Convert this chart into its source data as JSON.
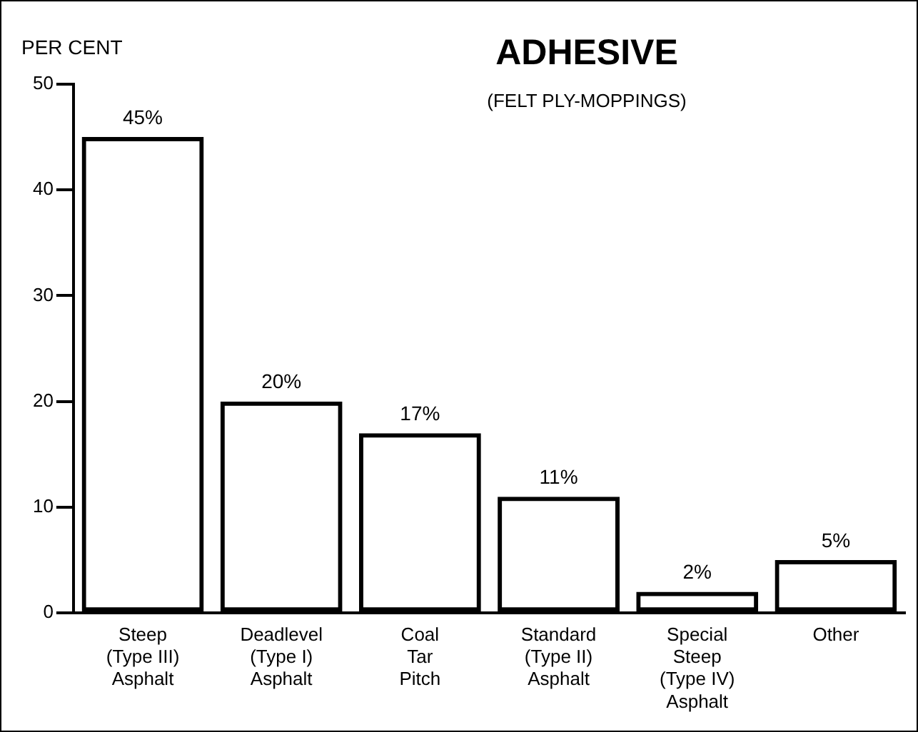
{
  "chart_data": {
    "type": "bar",
    "title": "ADHESIVE",
    "subtitle": "(FELT PLY-MOPPINGS)",
    "ylabel": "PER CENT",
    "categories": [
      "Steep\n(Type III)\nAsphalt",
      "Deadlevel\n(Type I)\nAsphalt",
      "Coal\nTar\nPitch",
      "Standard\n(Type II)\nAsphalt",
      "Special\nSteep\n(Type IV)\nAsphalt",
      "Other"
    ],
    "values": [
      45,
      20,
      17,
      11,
      2,
      5
    ],
    "value_labels": [
      "45%",
      "20%",
      "17%",
      "11%",
      "2%",
      "5%"
    ],
    "color": "#000000",
    "ylim": [
      0,
      50
    ],
    "yticks": [
      0,
      10,
      20,
      30,
      40,
      50
    ],
    "grid": false,
    "legend": false
  }
}
